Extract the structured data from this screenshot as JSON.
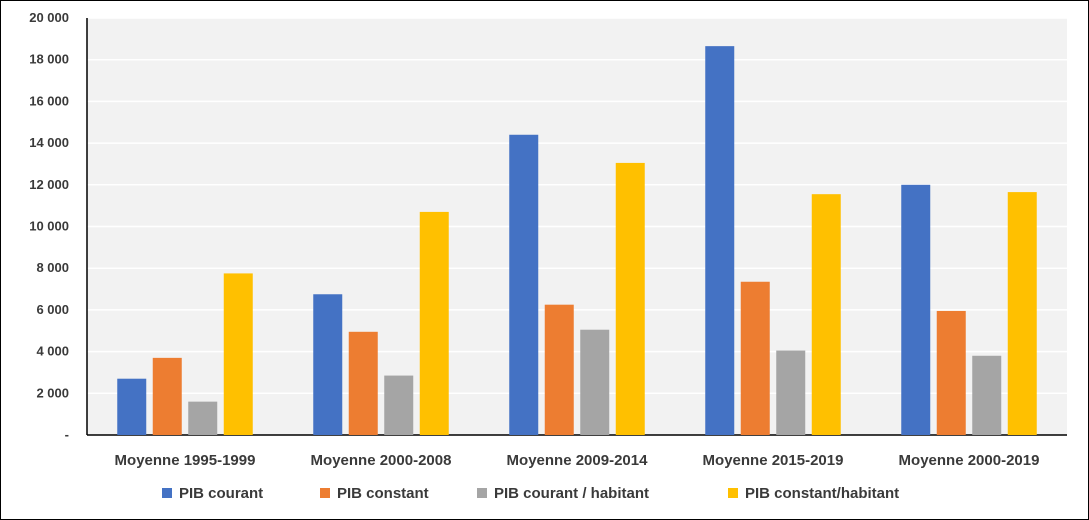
{
  "chart_data": {
    "type": "bar",
    "categories": [
      "Moyenne 1995-1999",
      "Moyenne 2000-2008",
      "Moyenne 2009-2014",
      "Moyenne 2015-2019",
      "Moyenne 2000-2019"
    ],
    "series": [
      {
        "name": "PIB courant",
        "color": "#4472C4",
        "values": [
          2700,
          6750,
          14400,
          18650,
          12000
        ]
      },
      {
        "name": "PIB constant",
        "color": "#ED7D31",
        "values": [
          3700,
          4950,
          6250,
          7350,
          5950
        ]
      },
      {
        "name": "PIB courant  / habitant",
        "color": "#A5A5A5",
        "values": [
          1600,
          2850,
          5050,
          4050,
          3800
        ]
      },
      {
        "name": "PIB constant/habitant",
        "color": "#FFC000",
        "values": [
          7750,
          10700,
          13050,
          11550,
          11650
        ]
      }
    ],
    "yticks": [
      "-",
      "2 000",
      "4 000",
      "6 000",
      "8 000",
      "10 000",
      "12 000",
      "14 000",
      "16 000",
      "18 000",
      "20 000"
    ],
    "ylim": [
      0,
      20000
    ],
    "grid": true,
    "legend_position": "bottom",
    "plot_background": "#F2F2F2",
    "gridline_color": "#FFFFFF"
  }
}
